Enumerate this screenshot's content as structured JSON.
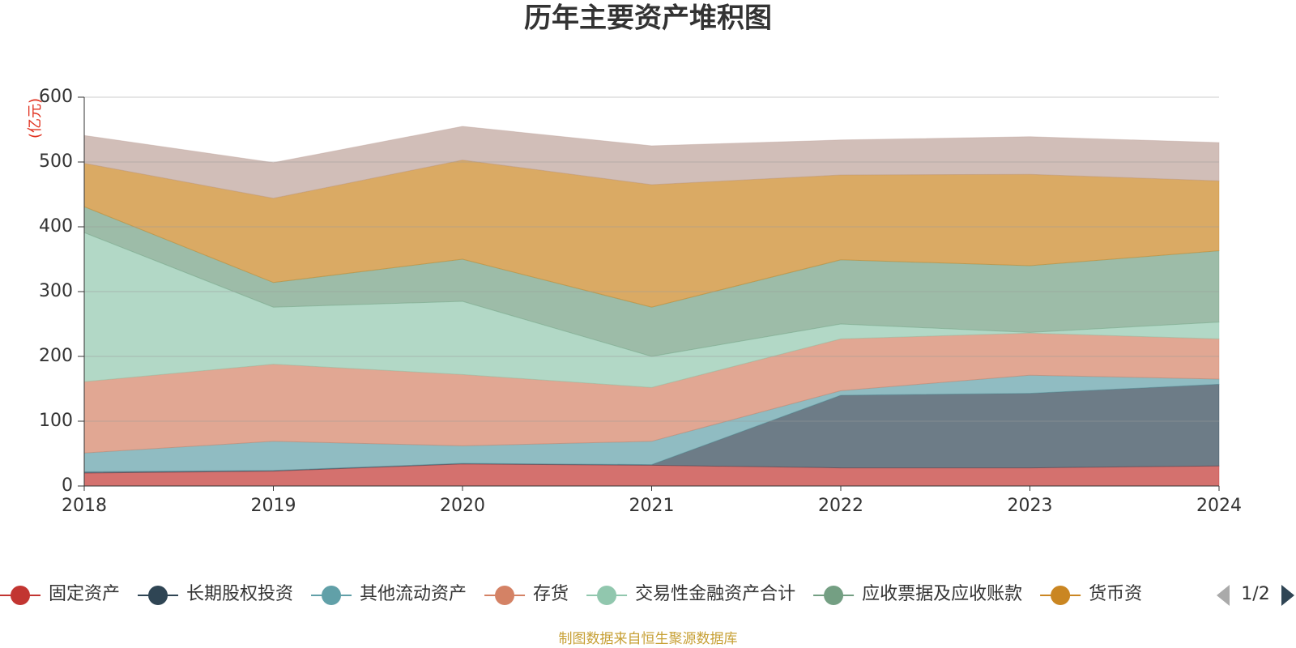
{
  "chart_data": {
    "type": "stacked_area",
    "title": "历年主要资产堆积图",
    "y_label": "(亿元)",
    "categories": [
      "2018",
      "2019",
      "2020",
      "2021",
      "2022",
      "2023",
      "2024"
    ],
    "series": [
      {
        "name": "固定资产",
        "color": "#c23531",
        "values": [
          20,
          23,
          34,
          32,
          28,
          28,
          31
        ]
      },
      {
        "name": "长期股权投资",
        "color": "#2f4554",
        "values": [
          2,
          1,
          1,
          1,
          112,
          115,
          126
        ]
      },
      {
        "name": "其他流动资产",
        "color": "#61a0a8",
        "values": [
          29,
          45,
          27,
          36,
          7,
          28,
          8
        ]
      },
      {
        "name": "存货",
        "color": "#d48265",
        "values": [
          110,
          119,
          110,
          83,
          80,
          65,
          62
        ]
      },
      {
        "name": "交易性金融资产合计",
        "color": "#91c7ae",
        "values": [
          230,
          88,
          113,
          48,
          23,
          1,
          26
        ]
      },
      {
        "name": "应收票据及应收账款",
        "color": "#749f83",
        "values": [
          40,
          38,
          65,
          76,
          99,
          103,
          110
        ]
      },
      {
        "name": "货币资",
        "color": "#ca8622",
        "values": [
          67,
          130,
          153,
          189,
          131,
          141,
          108
        ]
      },
      {
        "color": "#bda29a",
        "values": [
          43,
          55,
          52,
          60,
          54,
          58,
          59
        ]
      }
    ],
    "ylim": [
      0,
      600
    ],
    "yticks": [
      0,
      100,
      200,
      300,
      400,
      500,
      600
    ],
    "grid": true,
    "legend_page": "1/2",
    "source": "制图数据来自恒生聚源数据库"
  }
}
